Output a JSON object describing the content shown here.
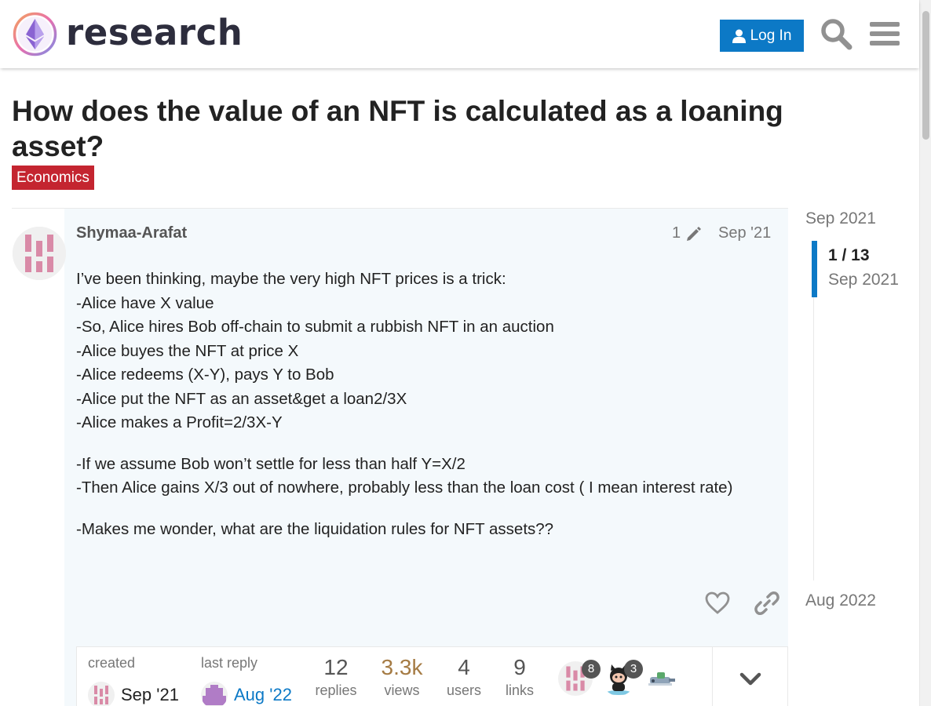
{
  "header": {
    "site_name": "research",
    "login_label": "Log In",
    "brand_color": "#0c79c6"
  },
  "topic": {
    "title": "How does the value of an NFT is calculated as a loaning asset?",
    "category": "Economics",
    "category_color": "#c42530"
  },
  "post": {
    "username": "Shymaa-Arafat",
    "edit_count": "1",
    "date": "Sep '21",
    "paragraphs": [
      [
        "I’ve been thinking, maybe the very high NFT prices is a trick:",
        "-Alice have X value",
        "-So, Alice hires Bob off-chain to submit a rubbish NFT in an auction",
        "-Alice buyes the NFT at price X",
        "-Alice redeems (X-Y), pays Y to Bob",
        "-Alice put the NFT as an asset&get a loan2/3X",
        "-Alice makes a Profit=2/3X-Y"
      ],
      [
        "-If we assume Bob won’t settle for less than half Y=X/2",
        "-Then Alice gains X/3 out of nowhere, probably less than the loan cost ( I mean interest rate)"
      ],
      [
        "-Makes me wonder, what are the liquidation rules for NFT assets??"
      ]
    ]
  },
  "topic_map": {
    "created_label": "created",
    "created_date": "Sep '21",
    "last_reply_label": "last reply",
    "last_reply_date": "Aug '22",
    "stats": [
      {
        "value": "12",
        "label": "replies"
      },
      {
        "value": "3.3k",
        "label": "views"
      },
      {
        "value": "4",
        "label": "users"
      },
      {
        "value": "9",
        "label": "links"
      }
    ],
    "participant_badges": [
      "8",
      "3"
    ]
  },
  "timeline": {
    "start_label": "Sep 2021",
    "position": "1 / 13",
    "position_date": "Sep 2021",
    "end_label": "Aug 2022"
  }
}
